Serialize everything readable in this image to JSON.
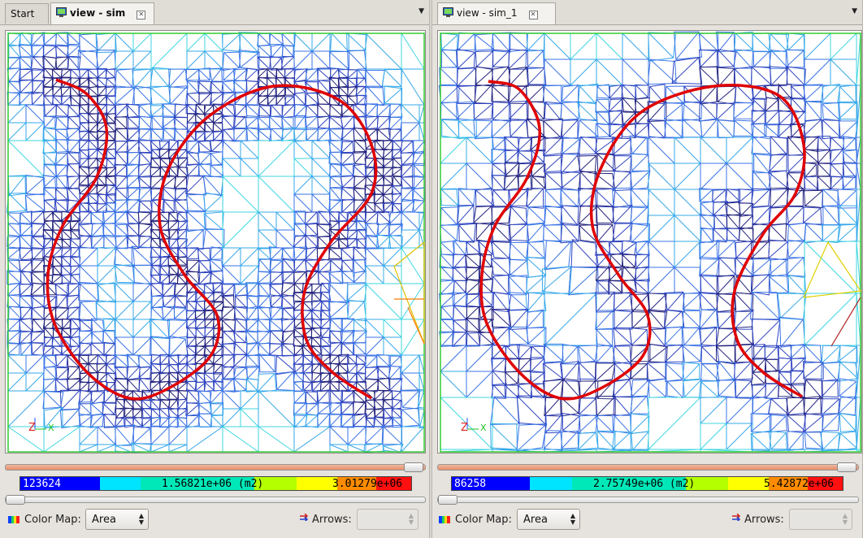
{
  "left": {
    "tabs": [
      {
        "label": "Start",
        "active": false
      },
      {
        "label": "view - sim",
        "active": true
      }
    ],
    "colorbar": {
      "min": "123624",
      "mid": "1.56821e+06 (m2)",
      "max": "3.01279e+06"
    },
    "color_map_label": "Color Map:",
    "color_map_value": "Area",
    "arrows_label": "Arrows:",
    "arrows_value": ""
  },
  "right": {
    "tabs": [
      {
        "label": "view - sim_1",
        "active": true
      }
    ],
    "colorbar": {
      "min": "86258",
      "mid": "2.75749e+06 (m2)",
      "max": "5.42872e+06"
    },
    "color_map_label": "Color Map:",
    "color_map_value": "Area",
    "arrows_label": "Arrows:",
    "arrows_value": ""
  },
  "axes_triad": {
    "z": "Z",
    "x": "X"
  },
  "colors": {
    "mesh_dense": "#2a2a8c",
    "mesh_mid": "#3c6ee0",
    "mesh_sparse": "#38d0e0",
    "curve": "#e00000",
    "colorbar": [
      "#0000ff",
      "#00c8ff",
      "#00ffaa",
      "#aaff00",
      "#ffff00",
      "#ff8800",
      "#ff0000"
    ]
  }
}
